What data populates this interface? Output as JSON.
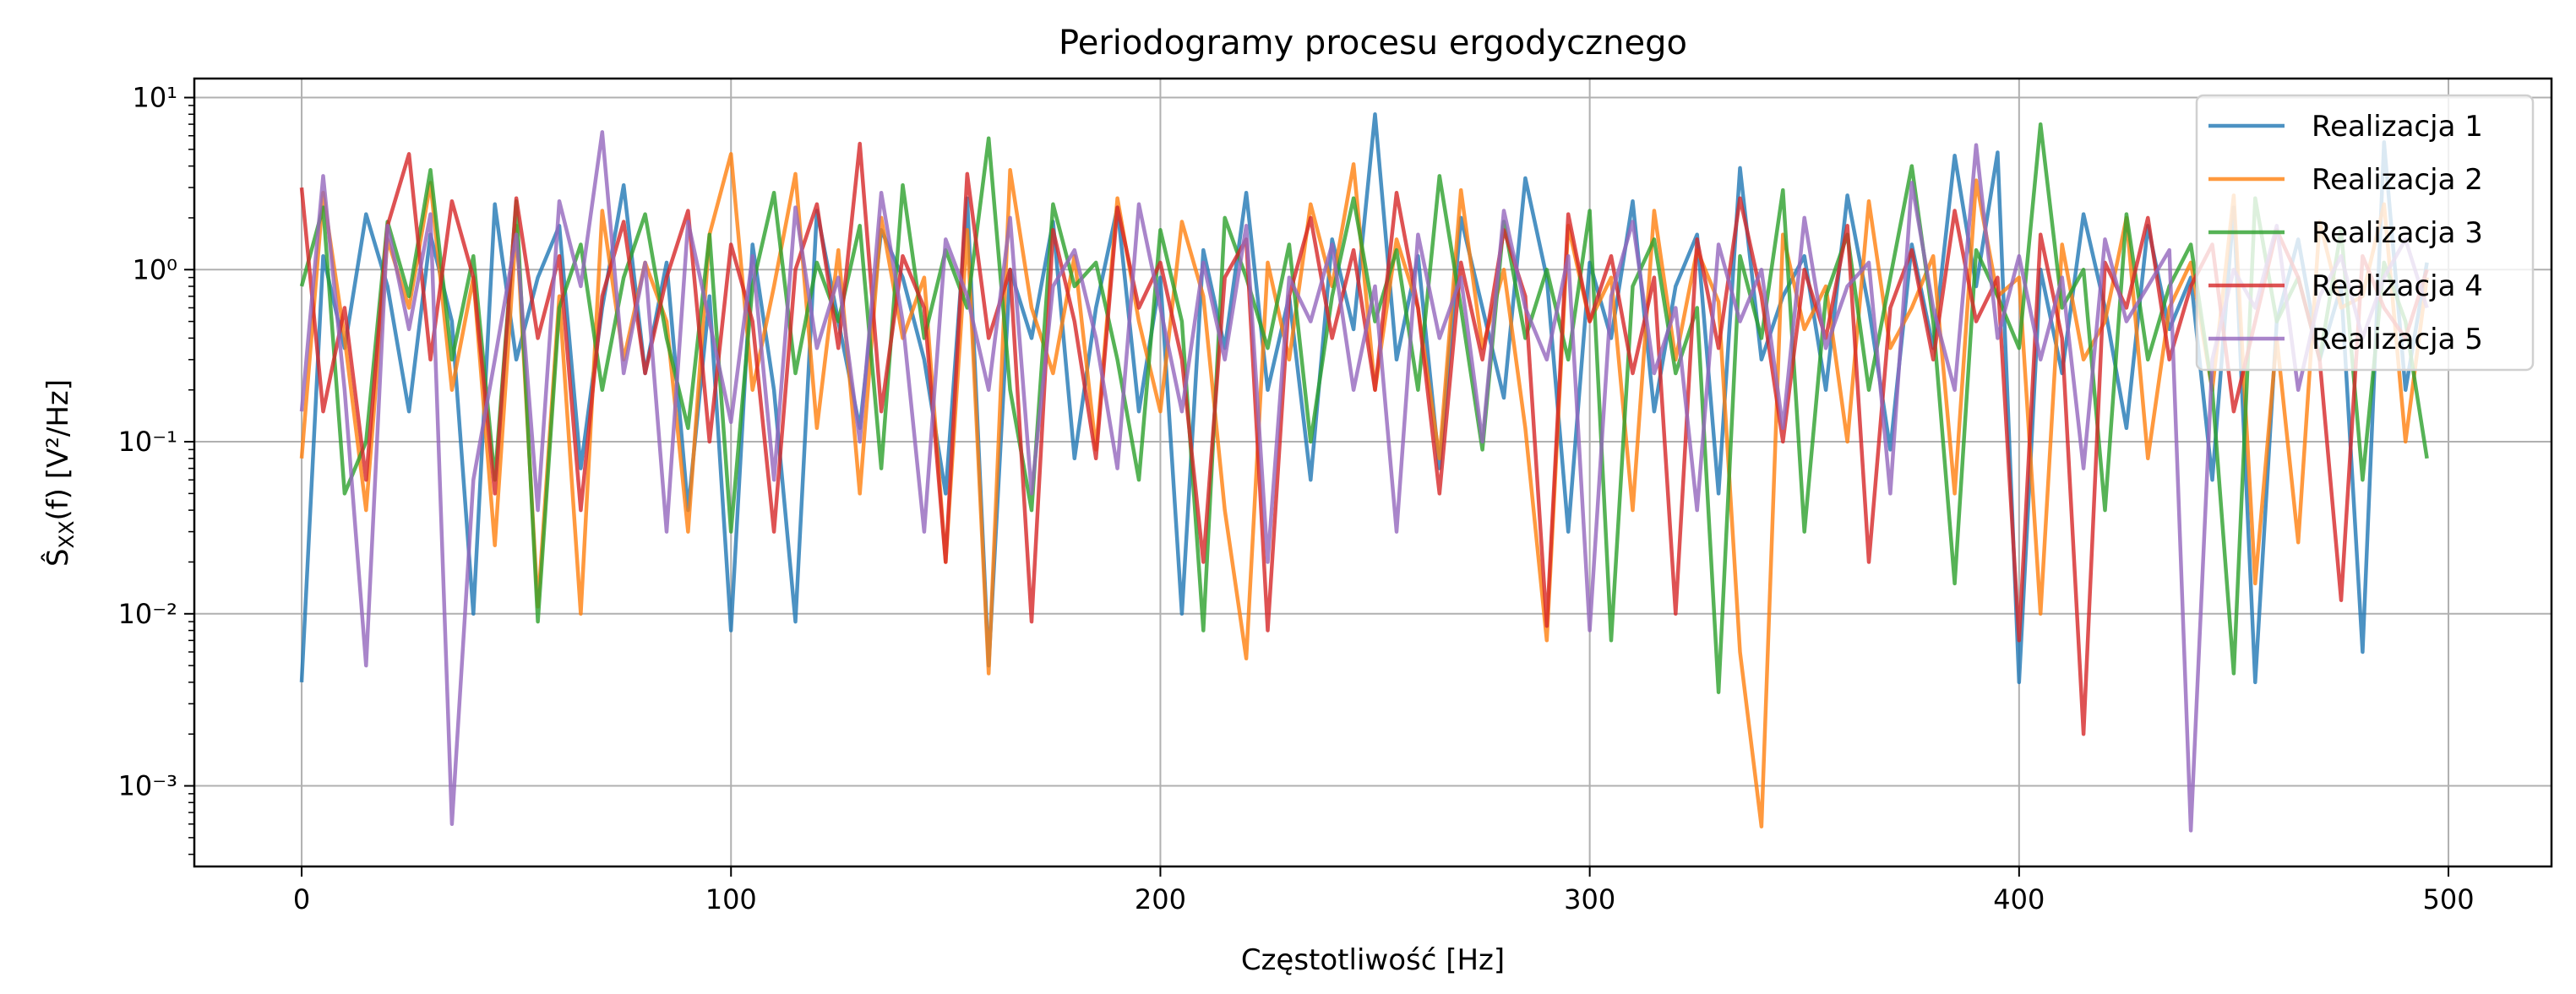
{
  "chart_data": {
    "type": "line",
    "title": "Periodogramy procesu ergodycznego",
    "xlabel": "Częstotliwość [Hz]",
    "ylabel": "Ŝ_XX(f) [V²/Hz]",
    "yscale": "log",
    "xlim": [
      -25,
      524
    ],
    "ylim": [
      0.00034,
      12.9
    ],
    "grid": true,
    "legend_position": "top-right",
    "x_start": 0,
    "x_step": 5,
    "x_ticks": [
      0,
      100,
      200,
      300,
      400,
      500
    ],
    "x_tick_labels": [
      "0",
      "100",
      "200",
      "300",
      "400",
      "500"
    ],
    "y_ticks": [
      10,
      1,
      0.1,
      0.01,
      0.001
    ],
    "y_tick_labels": [
      "10¹",
      "10⁰",
      "10⁻¹",
      "10⁻²",
      "10⁻³"
    ],
    "series": [
      {
        "name": "Realizacja 1",
        "color": "#1f77b4",
        "values": [
          0.004,
          1.2,
          0.35,
          2.1,
          0.8,
          0.15,
          1.6,
          0.5,
          0.01,
          2.4,
          0.3,
          0.9,
          1.8,
          0.07,
          0.6,
          3.1,
          0.25,
          1.1,
          0.04,
          0.7,
          0.008,
          1.4,
          0.2,
          0.009,
          2.2,
          0.5,
          0.12,
          1.7,
          0.9,
          0.3,
          0.05,
          2.6,
          0.005,
          1.0,
          0.4,
          1.9,
          0.08,
          0.6,
          2.3,
          0.15,
          0.9,
          0.01,
          1.3,
          0.35,
          2.8,
          0.2,
          0.7,
          0.06,
          1.5,
          0.45,
          8.0,
          0.3,
          1.2,
          0.07,
          2.0,
          0.6,
          0.18,
          3.4,
          0.9,
          0.03,
          1.1,
          0.4,
          2.5,
          0.15,
          0.8,
          1.6,
          0.05,
          3.9,
          0.3,
          0.7,
          1.2,
          0.2,
          2.7,
          0.6,
          0.09,
          1.4,
          0.35,
          4.6,
          0.8,
          4.8,
          0.004,
          1.0,
          0.25,
          2.1,
          0.6,
          0.12,
          1.8,
          0.45,
          0.9,
          0.06,
          2.3,
          0.004,
          0.5,
          1.5,
          0.3,
          0.8,
          0.006,
          5.5,
          0.2,
          1.1
        ]
      },
      {
        "name": "Realizacja 2",
        "color": "#ff7f0e",
        "values": [
          0.08,
          2.8,
          0.4,
          0.04,
          1.5,
          0.6,
          3.2,
          0.2,
          0.9,
          0.025,
          1.8,
          0.011,
          0.7,
          0.01,
          2.2,
          0.3,
          1.1,
          0.5,
          0.03,
          1.6,
          4.7,
          0.2,
          0.8,
          3.6,
          0.12,
          1.3,
          0.05,
          2.0,
          0.4,
          0.9,
          0.02,
          1.7,
          0.0045,
          3.8,
          0.6,
          0.25,
          1.2,
          0.09,
          2.6,
          0.5,
          0.15,
          1.9,
          0.7,
          0.04,
          0.0055,
          1.1,
          0.3,
          2.4,
          0.8,
          4.1,
          0.2,
          1.5,
          0.6,
          0.08,
          2.9,
          0.35,
          1.0,
          0.12,
          0.007,
          1.8,
          0.5,
          0.9,
          0.04,
          2.2,
          0.3,
          1.3,
          0.65,
          0.006,
          0.00058,
          1.6,
          0.45,
          0.8,
          0.1,
          2.5,
          0.35,
          0.6,
          1.2,
          0.05,
          3.3,
          0.7,
          0.9,
          0.01,
          1.4,
          0.3,
          0.5,
          2.0,
          0.08,
          0.6,
          1.1,
          0.2,
          2.7,
          0.015,
          0.4,
          0.026,
          1.9,
          0.6,
          0.7,
          2.4,
          0.1,
          0.9
        ]
      },
      {
        "name": "Realizacja 3",
        "color": "#2ca02c",
        "values": [
          0.8,
          2.3,
          0.05,
          0.1,
          1.9,
          0.7,
          3.8,
          0.3,
          1.2,
          0.06,
          2.5,
          0.009,
          0.6,
          1.4,
          0.2,
          0.9,
          2.1,
          0.4,
          0.12,
          1.6,
          0.03,
          0.8,
          2.8,
          0.25,
          1.1,
          0.5,
          1.8,
          0.07,
          3.1,
          0.4,
          1.3,
          0.6,
          5.8,
          0.2,
          0.04,
          2.4,
          0.8,
          1.1,
          0.3,
          0.06,
          1.7,
          0.5,
          0.008,
          2.0,
          0.9,
          0.35,
          1.4,
          0.1,
          0.7,
          2.6,
          0.5,
          1.3,
          0.2,
          3.5,
          0.6,
          0.09,
          1.9,
          0.4,
          1.0,
          0.3,
          2.2,
          0.007,
          0.8,
          1.5,
          0.25,
          0.6,
          0.0035,
          1.2,
          0.4,
          2.9,
          0.03,
          0.7,
          1.6,
          0.2,
          0.9,
          4.0,
          0.5,
          0.015,
          1.3,
          0.7,
          0.35,
          7.0,
          0.6,
          1.0,
          0.04,
          2.1,
          0.3,
          0.8,
          1.4,
          0.2,
          0.0045,
          2.6,
          0.5,
          0.9,
          0.3,
          1.7,
          0.06,
          1.1,
          0.5,
          0.08
        ]
      },
      {
        "name": "Realizacja 4",
        "color": "#d62728",
        "values": [
          3.0,
          0.15,
          0.6,
          0.06,
          1.8,
          4.7,
          0.3,
          2.5,
          0.9,
          0.05,
          2.6,
          0.4,
          1.2,
          0.04,
          0.7,
          1.9,
          0.25,
          0.9,
          2.2,
          0.1,
          1.4,
          0.5,
          0.03,
          1.0,
          2.4,
          0.35,
          5.4,
          0.15,
          1.2,
          0.6,
          0.02,
          3.6,
          0.4,
          1.0,
          0.009,
          1.7,
          0.5,
          0.08,
          2.3,
          0.6,
          1.1,
          0.3,
          0.02,
          0.9,
          1.5,
          0.008,
          0.7,
          2.0,
          0.4,
          1.3,
          0.2,
          2.8,
          0.6,
          0.05,
          1.1,
          0.3,
          1.7,
          0.7,
          0.0085,
          2.1,
          0.5,
          1.2,
          0.25,
          0.9,
          0.01,
          1.5,
          0.35,
          2.6,
          0.7,
          0.1,
          1.0,
          0.4,
          1.8,
          0.02,
          0.6,
          1.3,
          0.3,
          2.2,
          0.5,
          0.9,
          0.007,
          1.6,
          0.4,
          0.002,
          1.1,
          0.6,
          2.0,
          0.3,
          0.8,
          1.4,
          0.15,
          0.5,
          1.7,
          0.9,
          0.3,
          0.012,
          1.2,
          0.6,
          0.4,
          1.0
        ]
      },
      {
        "name": "Realizacja 5",
        "color": "#9467bd",
        "values": [
          0.15,
          3.5,
          0.2,
          0.005,
          1.8,
          0.45,
          2.1,
          0.0006,
          0.06,
          0.3,
          1.6,
          0.04,
          2.5,
          0.8,
          6.3,
          0.25,
          1.1,
          0.03,
          1.9,
          0.5,
          0.13,
          1.2,
          0.06,
          2.3,
          0.35,
          0.9,
          0.1,
          2.8,
          0.5,
          0.03,
          1.5,
          0.7,
          0.2,
          2.0,
          0.05,
          0.8,
          1.3,
          0.4,
          0.07,
          2.4,
          0.6,
          0.15,
          1.1,
          0.3,
          1.8,
          0.02,
          0.9,
          0.5,
          1.4,
          0.2,
          0.8,
          0.03,
          1.6,
          0.4,
          0.9,
          0.1,
          2.2,
          0.6,
          0.3,
          1.2,
          0.008,
          0.7,
          1.9,
          0.25,
          0.6,
          0.04,
          1.4,
          0.5,
          1.0,
          0.12,
          2.0,
          0.35,
          0.8,
          1.1,
          0.05,
          3.2,
          0.6,
          0.2,
          5.3,
          0.4,
          1.2,
          0.3,
          0.9,
          0.07,
          1.5,
          0.5,
          0.8,
          1.3,
          0.00055,
          0.3,
          1.0,
          0.6,
          1.8,
          0.2,
          0.7,
          1.2,
          0.4,
          0.9,
          1.5,
          0.6
        ]
      }
    ]
  }
}
